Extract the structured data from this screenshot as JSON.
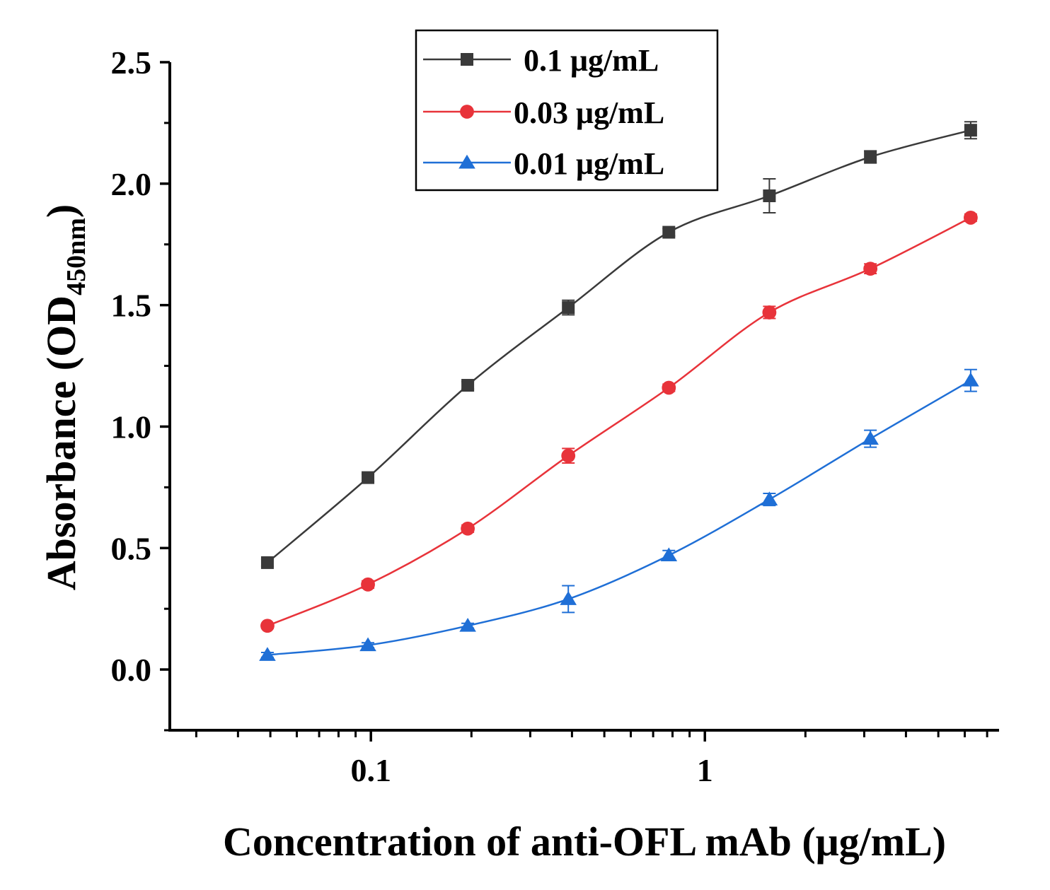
{
  "chart_data": {
    "type": "line",
    "title": "",
    "xlabel": "Concentration of anti-OFL mAb (μg/mL)",
    "ylabel_main": "Absorbance (OD",
    "ylabel_sub": "450nm",
    "ylabel_end": ")",
    "xscale": "log",
    "xlim": [
      0.025,
      7.6
    ],
    "ylim": [
      -0.25,
      2.5
    ],
    "yticks": [
      {
        "value": 0.0,
        "label": "0.0"
      },
      {
        "value": 0.5,
        "label": "0.5"
      },
      {
        "value": 1.0,
        "label": "1.0"
      },
      {
        "value": 1.5,
        "label": "1.5"
      },
      {
        "value": 2.0,
        "label": "2.0"
      },
      {
        "value": 2.5,
        "label": "2.5"
      }
    ],
    "xticks": [
      {
        "value": 0.1,
        "label": "0.1"
      },
      {
        "value": 1,
        "label": "1"
      }
    ],
    "x": [
      0.049,
      0.098,
      0.195,
      0.39,
      0.78,
      1.56,
      3.13,
      6.25
    ],
    "series": [
      {
        "name": "0.1 μg/mL",
        "color": "#3a3a3a",
        "marker": "square",
        "values": [
          0.44,
          0.79,
          1.17,
          1.49,
          1.8,
          1.95,
          2.11,
          2.22
        ],
        "errors": [
          0.015,
          0.015,
          0.015,
          0.03,
          0.015,
          0.07,
          0.025,
          0.035
        ]
      },
      {
        "name": "0.03 μg/mL",
        "color": "#e8333a",
        "marker": "circle",
        "values": [
          0.18,
          0.35,
          0.58,
          0.88,
          1.16,
          1.47,
          1.65,
          1.86
        ],
        "errors": [
          0.01,
          0.015,
          0.015,
          0.03,
          0.015,
          0.025,
          0.02,
          0.015
        ]
      },
      {
        "name": "0.01 μg/mL",
        "color": "#1f6fd6",
        "marker": "triangle",
        "values": [
          0.06,
          0.1,
          0.18,
          0.29,
          0.47,
          0.7,
          0.95,
          1.19
        ],
        "errors": [
          0.01,
          0.01,
          0.01,
          0.055,
          0.02,
          0.025,
          0.035,
          0.045
        ]
      }
    ],
    "legend_position": "top-center",
    "grid": false
  }
}
